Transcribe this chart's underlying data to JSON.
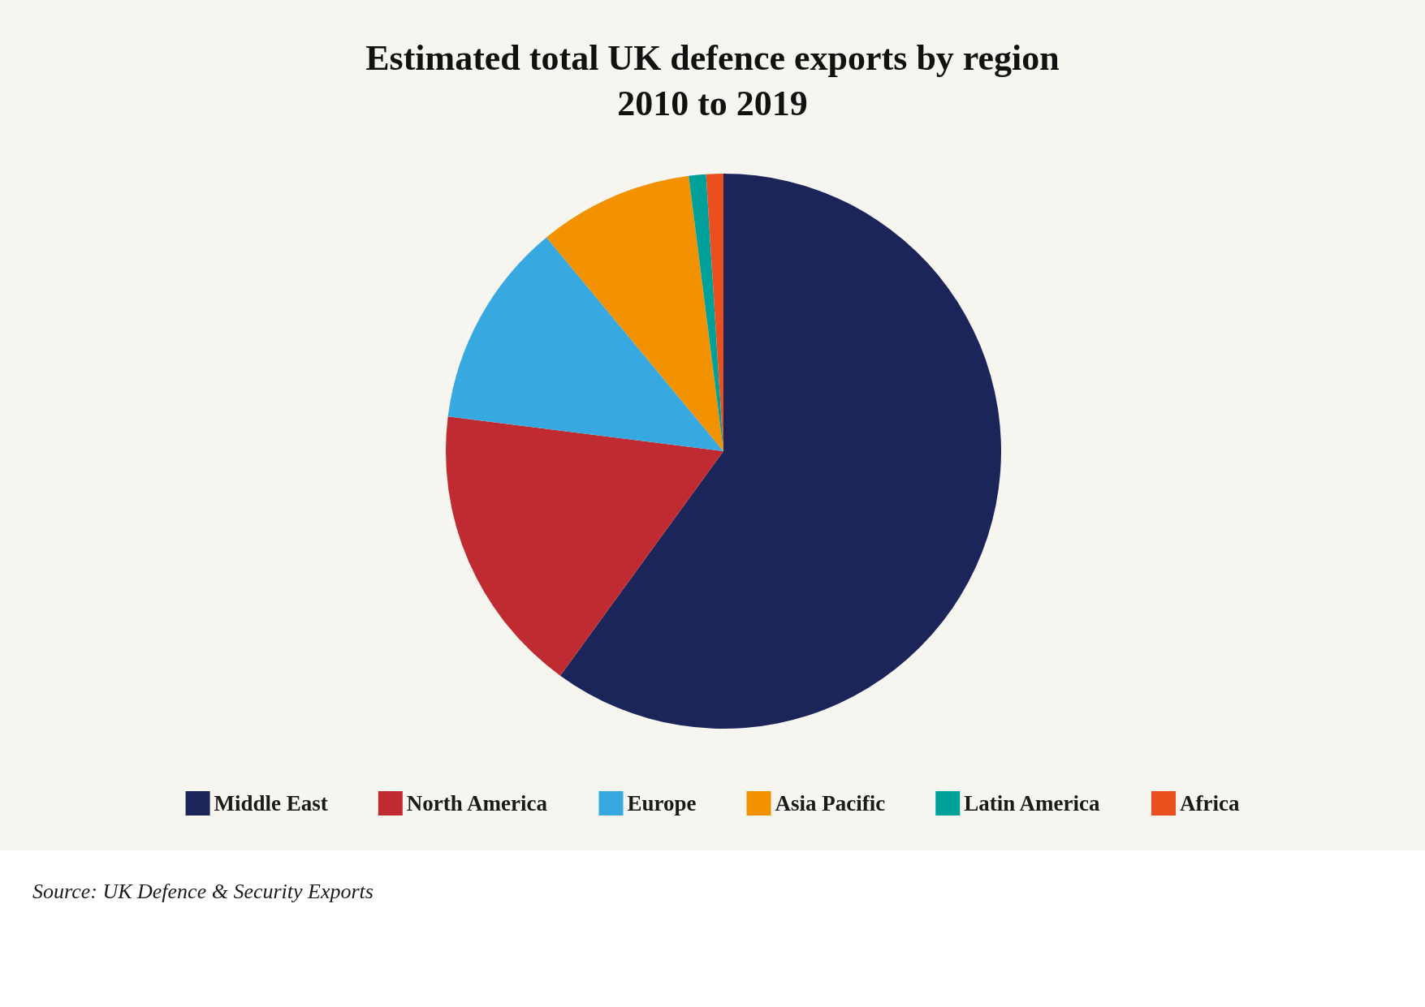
{
  "chart_data": {
    "type": "pie",
    "title": "Estimated total UK defence exports by region\n2010 to 2019",
    "categories": [
      "Middle East",
      "North America",
      "Europe",
      "Asia Pacific",
      "Latin America",
      "Africa"
    ],
    "values": [
      60,
      17,
      12,
      9,
      1,
      1
    ],
    "colors": [
      "#1c2559",
      "#c02b32",
      "#38a8e0",
      "#f29200",
      "#00a19a",
      "#e9501e"
    ],
    "legend": "bottom",
    "annotations": [
      "Source: UK Defence & Security Exports"
    ]
  }
}
